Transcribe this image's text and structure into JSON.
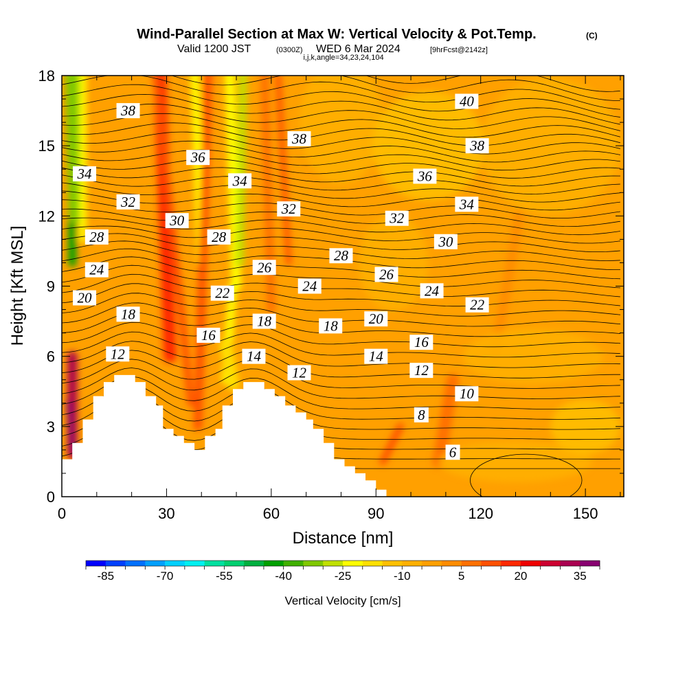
{
  "header": {
    "title": "Wind-Parallel Section at Max W: Vertical Velocity & Pot.Temp.",
    "copyright": "(C)",
    "valid_prefix": "Valid 1200 JST",
    "valid_utc": "(0300Z)",
    "valid_date": "WED 6 Mar 2024",
    "forecast_info": "[9hrFcst@2142z]",
    "indices": "i,j,k,angle=34,23,24,104"
  },
  "chart_data": {
    "type": "heatmap",
    "xlabel": "Distance [nm]",
    "ylabel": "Height [Kft MSL]",
    "xlim": [
      0,
      161
    ],
    "ylim": [
      0,
      18
    ],
    "x_ticks": [
      0,
      30,
      60,
      90,
      120,
      150
    ],
    "y_ticks": [
      0,
      3,
      6,
      9,
      12,
      15,
      18
    ],
    "x_minor_step": 10,
    "y_minor_step": 1,
    "grid": false,
    "colorbar": {
      "label": "Vertical Velocity [cm/s]",
      "tick_labels": [
        "-85",
        "-70",
        "-55",
        "-40",
        "-25",
        "-10",
        "5",
        "20",
        "35"
      ],
      "min": -90,
      "max": 40,
      "step": 5,
      "colors": [
        "#0000ff",
        "#0040ff",
        "#0070ff",
        "#00a0ff",
        "#00d0ff",
        "#00f0f0",
        "#00e0a0",
        "#00d070",
        "#00b040",
        "#00a000",
        "#40b000",
        "#80c800",
        "#c0e000",
        "#ffff00",
        "#ffe000",
        "#ffc000",
        "#ffb000",
        "#ffa000",
        "#ff8c00",
        "#ff7000",
        "#ff5000",
        "#ff2800",
        "#ee0000",
        "#cc0030",
        "#aa0050",
        "#880070"
      ]
    },
    "terrain": [
      [
        0,
        1.6
      ],
      [
        3,
        1.6
      ],
      [
        3,
        2.3
      ],
      [
        6,
        2.3
      ],
      [
        6,
        3.3
      ],
      [
        9,
        3.3
      ],
      [
        9,
        4.3
      ],
      [
        12,
        4.3
      ],
      [
        12,
        4.9
      ],
      [
        15,
        4.9
      ],
      [
        15,
        5.2
      ],
      [
        21,
        5.2
      ],
      [
        21,
        4.9
      ],
      [
        24,
        4.9
      ],
      [
        24,
        4.3
      ],
      [
        27,
        4.3
      ],
      [
        27,
        3.9
      ],
      [
        29,
        3.9
      ],
      [
        29,
        2.9
      ],
      [
        32,
        2.9
      ],
      [
        32,
        2.6
      ],
      [
        35,
        2.6
      ],
      [
        35,
        2.3
      ],
      [
        38,
        2.3
      ],
      [
        38,
        2.0
      ],
      [
        41,
        2.0
      ],
      [
        41,
        2.6
      ],
      [
        44,
        2.6
      ],
      [
        44,
        2.9
      ],
      [
        46,
        2.9
      ],
      [
        46,
        3.9
      ],
      [
        49,
        3.9
      ],
      [
        49,
        4.6
      ],
      [
        52,
        4.6
      ],
      [
        52,
        4.9
      ],
      [
        58,
        4.9
      ],
      [
        58,
        4.6
      ],
      [
        61,
        4.6
      ],
      [
        61,
        4.3
      ],
      [
        64,
        4.3
      ],
      [
        64,
        3.9
      ],
      [
        67,
        3.9
      ],
      [
        67,
        3.6
      ],
      [
        70,
        3.6
      ],
      [
        70,
        3.3
      ],
      [
        72,
        3.3
      ],
      [
        72,
        2.9
      ],
      [
        75,
        2.9
      ],
      [
        75,
        2.3
      ],
      [
        78,
        2.3
      ],
      [
        78,
        1.6
      ],
      [
        81,
        1.6
      ],
      [
        81,
        1.3
      ],
      [
        84,
        1.3
      ],
      [
        84,
        1.0
      ],
      [
        87,
        1.0
      ],
      [
        87,
        0.7
      ],
      [
        90,
        0.7
      ],
      [
        90,
        0.3
      ],
      [
        93,
        0.3
      ],
      [
        93,
        0
      ]
    ],
    "contour_labels": [
      {
        "text": "38",
        "x": 19,
        "y": 16.5
      },
      {
        "text": "34",
        "x": 6.5,
        "y": 13.8
      },
      {
        "text": "36",
        "x": 39,
        "y": 14.5
      },
      {
        "text": "34",
        "x": 51,
        "y": 13.5
      },
      {
        "text": "38",
        "x": 68,
        "y": 15.3
      },
      {
        "text": "40",
        "x": 116,
        "y": 16.9
      },
      {
        "text": "38",
        "x": 119,
        "y": 15.0
      },
      {
        "text": "36",
        "x": 104,
        "y": 13.7
      },
      {
        "text": "34",
        "x": 116,
        "y": 12.5
      },
      {
        "text": "32",
        "x": 19,
        "y": 12.6
      },
      {
        "text": "30",
        "x": 33,
        "y": 11.8
      },
      {
        "text": "32",
        "x": 65,
        "y": 12.3
      },
      {
        "text": "32",
        "x": 96,
        "y": 11.9
      },
      {
        "text": "30",
        "x": 110,
        "y": 10.9
      },
      {
        "text": "28",
        "x": 10,
        "y": 11.1
      },
      {
        "text": "28",
        "x": 45,
        "y": 11.1
      },
      {
        "text": "28",
        "x": 80,
        "y": 10.3
      },
      {
        "text": "26",
        "x": 58,
        "y": 9.8
      },
      {
        "text": "26",
        "x": 93,
        "y": 9.5
      },
      {
        "text": "24",
        "x": 10,
        "y": 9.7
      },
      {
        "text": "24",
        "x": 71,
        "y": 9.0
      },
      {
        "text": "24",
        "x": 106,
        "y": 8.8
      },
      {
        "text": "22",
        "x": 46,
        "y": 8.7
      },
      {
        "text": "22",
        "x": 119,
        "y": 8.2
      },
      {
        "text": "20",
        "x": 6.5,
        "y": 8.5
      },
      {
        "text": "20",
        "x": 90,
        "y": 7.6
      },
      {
        "text": "18",
        "x": 19,
        "y": 7.8
      },
      {
        "text": "18",
        "x": 58,
        "y": 7.5
      },
      {
        "text": "18",
        "x": 77,
        "y": 7.3
      },
      {
        "text": "16",
        "x": 42,
        "y": 6.9
      },
      {
        "text": "16",
        "x": 103,
        "y": 6.6
      },
      {
        "text": "14",
        "x": 55,
        "y": 6.0
      },
      {
        "text": "14",
        "x": 90,
        "y": 6.0
      },
      {
        "text": "12",
        "x": 16,
        "y": 6.1
      },
      {
        "text": "12",
        "x": 68,
        "y": 5.3
      },
      {
        "text": "12",
        "x": 103,
        "y": 5.4
      },
      {
        "text": "10",
        "x": 116,
        "y": 4.4
      },
      {
        "text": "8",
        "x": 103,
        "y": 3.5
      },
      {
        "text": "6",
        "x": 112,
        "y": 1.9
      }
    ]
  }
}
